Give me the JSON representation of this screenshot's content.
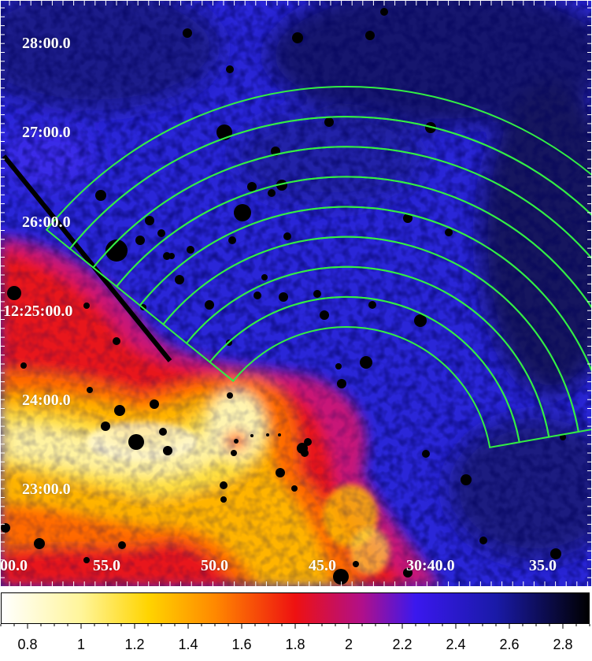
{
  "image": {
    "description_free": true,
    "dec_labels": [
      "28:00.0",
      "27:00.0",
      "26:00.0",
      "12:25:00.0",
      "24:00.0",
      "23:00.0"
    ],
    "ra_labels": [
      "00.0",
      "55.0",
      "50.0",
      "45.0",
      "30:40.0",
      "35.0"
    ],
    "region_color": "#33ee44",
    "num_annuli": 8
  },
  "colorbar": {
    "labels": [
      "0.8",
      "1",
      "1.2",
      "1.4",
      "1.6",
      "1.8",
      "2",
      "2.2",
      "2.4",
      "2.6",
      "2.8"
    ],
    "stops": [
      {
        "value": 0.7,
        "color": "#ffffff"
      },
      {
        "value": 1.0,
        "color": "#fff59a"
      },
      {
        "value": 1.25,
        "color": "#ffd400"
      },
      {
        "value": 1.5,
        "color": "#ff8800"
      },
      {
        "value": 1.8,
        "color": "#ee1111"
      },
      {
        "value": 2.05,
        "color": "#b0108a"
      },
      {
        "value": 2.25,
        "color": "#3a18ee"
      },
      {
        "value": 2.55,
        "color": "#1a1aa8"
      },
      {
        "value": 2.9,
        "color": "#000000"
      }
    ]
  }
}
